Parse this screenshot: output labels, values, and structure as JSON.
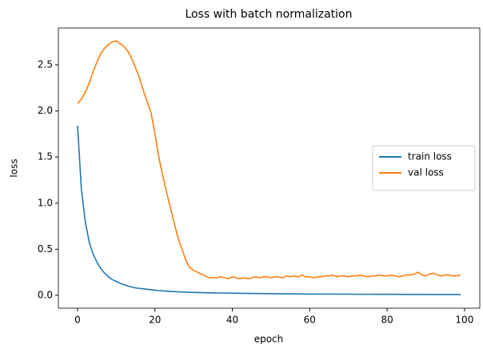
{
  "chart_data": {
    "type": "line",
    "title": "Loss with batch normalization",
    "x_label": "epoch",
    "y_label": "loss",
    "x": [
      0,
      1,
      2,
      3,
      4,
      5,
      6,
      7,
      8,
      9,
      10,
      11,
      12,
      13,
      14,
      15,
      16,
      17,
      18,
      19,
      20,
      21,
      22,
      23,
      24,
      25,
      26,
      27,
      28,
      29,
      30,
      31,
      32,
      33,
      34,
      35,
      36,
      37,
      38,
      39,
      40,
      41,
      42,
      43,
      44,
      45,
      46,
      47,
      48,
      49,
      50,
      51,
      52,
      53,
      54,
      55,
      56,
      57,
      58,
      59,
      60,
      61,
      62,
      63,
      64,
      65,
      66,
      67,
      68,
      69,
      70,
      71,
      72,
      73,
      74,
      75,
      76,
      77,
      78,
      79,
      80,
      81,
      82,
      83,
      84,
      85,
      86,
      87,
      88,
      89,
      90,
      91,
      92,
      93,
      94,
      95,
      96,
      97,
      98,
      99
    ],
    "series": [
      {
        "name": "train loss",
        "color": "#1f77b4",
        "values": [
          1.84,
          1.15,
          0.8,
          0.58,
          0.45,
          0.36,
          0.29,
          0.24,
          0.2,
          0.17,
          0.15,
          0.13,
          0.115,
          0.1,
          0.09,
          0.08,
          0.075,
          0.07,
          0.065,
          0.06,
          0.055,
          0.05,
          0.048,
          0.045,
          0.042,
          0.04,
          0.038,
          0.036,
          0.034,
          0.032,
          0.031,
          0.03,
          0.029,
          0.028,
          0.027,
          0.026,
          0.025,
          0.025,
          0.024,
          0.023,
          0.022,
          0.022,
          0.021,
          0.021,
          0.02,
          0.02,
          0.019,
          0.019,
          0.018,
          0.018,
          0.018,
          0.017,
          0.017,
          0.016,
          0.016,
          0.016,
          0.015,
          0.015,
          0.015,
          0.014,
          0.014,
          0.014,
          0.014,
          0.013,
          0.013,
          0.013,
          0.013,
          0.012,
          0.012,
          0.012,
          0.012,
          0.012,
          0.011,
          0.011,
          0.011,
          0.011,
          0.011,
          0.01,
          0.01,
          0.01,
          0.01,
          0.01,
          0.01,
          0.01,
          0.009,
          0.009,
          0.009,
          0.009,
          0.009,
          0.009,
          0.009,
          0.009,
          0.008,
          0.008,
          0.008,
          0.008,
          0.008,
          0.008,
          0.008,
          0.008
        ]
      },
      {
        "name": "val loss",
        "color": "#ff7f0e",
        "values": [
          2.08,
          2.13,
          2.2,
          2.3,
          2.42,
          2.53,
          2.62,
          2.68,
          2.72,
          2.75,
          2.76,
          2.73,
          2.7,
          2.65,
          2.57,
          2.47,
          2.36,
          2.22,
          2.1,
          1.98,
          1.75,
          1.5,
          1.3,
          1.12,
          0.95,
          0.78,
          0.62,
          0.5,
          0.38,
          0.3,
          0.27,
          0.25,
          0.23,
          0.21,
          0.19,
          0.19,
          0.19,
          0.2,
          0.19,
          0.18,
          0.2,
          0.19,
          0.18,
          0.19,
          0.18,
          0.19,
          0.2,
          0.19,
          0.2,
          0.2,
          0.19,
          0.2,
          0.2,
          0.19,
          0.21,
          0.2,
          0.21,
          0.2,
          0.22,
          0.2,
          0.2,
          0.19,
          0.2,
          0.2,
          0.21,
          0.21,
          0.22,
          0.2,
          0.21,
          0.21,
          0.2,
          0.21,
          0.21,
          0.22,
          0.21,
          0.2,
          0.21,
          0.21,
          0.22,
          0.21,
          0.21,
          0.22,
          0.21,
          0.2,
          0.21,
          0.22,
          0.22,
          0.23,
          0.25,
          0.22,
          0.21,
          0.23,
          0.24,
          0.22,
          0.21,
          0.22,
          0.22,
          0.21,
          0.21,
          0.22
        ]
      }
    ],
    "xlim": [
      -4.95,
      103.95
    ],
    "xticks": [
      0,
      20,
      40,
      60,
      80,
      100
    ],
    "ylim": [
      -0.14,
      2.9
    ],
    "yticks": [
      {
        "value": 0,
        "label": "0.0"
      },
      0.5,
      {
        "value": 1,
        "label": "1.0"
      },
      1.5,
      {
        "value": 2,
        "label": "2.0"
      },
      2.5
    ],
    "legend": "center right"
  }
}
